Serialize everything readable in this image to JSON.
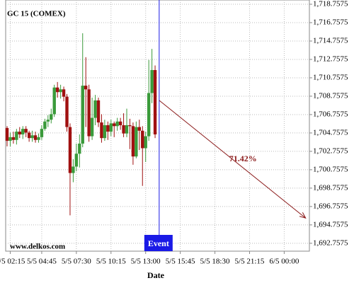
{
  "chart_data": {
    "type": "candlestick",
    "title": "GC 15 (COMEX)",
    "watermark": "www.delkos.com",
    "x_label": "Date",
    "x": [
      0,
      1,
      2,
      3,
      4,
      5,
      6,
      7,
      8,
      9,
      10,
      11,
      12,
      13,
      14,
      15,
      16,
      17,
      18,
      19,
      20,
      21,
      22,
      23,
      24,
      25,
      26,
      27,
      28,
      29,
      30,
      31,
      32,
      33,
      34,
      35,
      36,
      37,
      38,
      39,
      40,
      41,
      42,
      43,
      44,
      45,
      46,
      47
    ],
    "open": [
      1705.3,
      1703.9,
      1704.3,
      1704.0,
      1704.9,
      1704.6,
      1705.2,
      1704.8,
      1704.2,
      1704.5,
      1704.0,
      1704.3,
      1705.2,
      1706.0,
      1706.2,
      1706.8,
      1709.7,
      1709.2,
      1709.5,
      1708.7,
      1705.4,
      1700.4,
      1701.1,
      1702.5,
      1703.6,
      1709.9,
      1709.5,
      1704.4,
      1706.4,
      1708.3,
      1705.9,
      1704.2,
      1705.6,
      1704.9,
      1705.8,
      1705.5,
      1706.0,
      1705.6,
      1704.7,
      1705.6,
      1705.5,
      1702.2,
      1705.4,
      1705.0,
      1703.1,
      1704.4,
      1709.1,
      1711.6
    ],
    "high": [
      1705.5,
      1704.8,
      1704.9,
      1705.2,
      1705.4,
      1705.5,
      1705.5,
      1705.0,
      1705.0,
      1704.9,
      1704.7,
      1705.6,
      1706.3,
      1706.7,
      1707.4,
      1710.0,
      1710.3,
      1710.0,
      1709.8,
      1709.0,
      1705.8,
      1701.9,
      1703.6,
      1704.6,
      1715.6,
      1713.0,
      1710.0,
      1708.6,
      1708.9,
      1708.6,
      1706.8,
      1706.2,
      1706.0,
      1706.2,
      1706.0,
      1706.4,
      1706.4,
      1706.9,
      1707.4,
      1706.3,
      1705.9,
      1706.0,
      1706.2,
      1705.5,
      1704.9,
      1712.7,
      1713.9,
      1712.1
    ],
    "low": [
      1703.3,
      1703.3,
      1703.6,
      1703.5,
      1704.2,
      1704.1,
      1704.3,
      1703.8,
      1703.8,
      1703.7,
      1703.7,
      1704.0,
      1705.0,
      1705.4,
      1705.8,
      1706.5,
      1708.6,
      1708.5,
      1708.2,
      1704.9,
      1695.8,
      1699.4,
      1700.6,
      1701.0,
      1703.2,
      1705.4,
      1703.8,
      1704.0,
      1705.6,
      1705.4,
      1703.7,
      1703.9,
      1704.0,
      1704.4,
      1704.3,
      1705.0,
      1705.1,
      1704.3,
      1704.3,
      1703.0,
      1701.3,
      1702.0,
      1702.9,
      1699.0,
      1701.6,
      1703.9,
      1708.0,
      1704.2
    ],
    "close": [
      1703.9,
      1704.3,
      1704.0,
      1704.9,
      1704.6,
      1705.2,
      1704.8,
      1704.2,
      1704.5,
      1704.0,
      1704.3,
      1705.2,
      1706.0,
      1706.2,
      1706.8,
      1709.7,
      1709.2,
      1709.5,
      1708.7,
      1705.4,
      1700.4,
      1701.1,
      1702.5,
      1703.6,
      1709.9,
      1709.5,
      1704.4,
      1706.4,
      1708.3,
      1705.9,
      1704.2,
      1705.6,
      1704.9,
      1705.8,
      1705.5,
      1706.0,
      1705.6,
      1704.7,
      1705.6,
      1705.5,
      1702.2,
      1705.4,
      1705.0,
      1703.1,
      1704.4,
      1709.1,
      1711.6,
      1704.6
    ],
    "up_color": "#3a9a3a",
    "down_color": "#a01010",
    "event": {
      "label": "Event",
      "x": 48.3,
      "color": "#1a1ae6"
    },
    "projection": {
      "label": "71.42%",
      "x": [
        48.3,
        94.8
      ],
      "y": [
        1708.3,
        1695.5
      ],
      "color": "#8b1a1a"
    },
    "xlim": [
      -0.45,
      96
    ],
    "xticks": [
      {
        "value": 1,
        "label": "5/5 02:15"
      },
      {
        "value": 11,
        "label": "5/5 04:45"
      },
      {
        "value": 22,
        "label": "5/5 07:30"
      },
      {
        "value": 33,
        "label": "5/5 10:15"
      },
      {
        "value": 44,
        "label": "5/5 13:00"
      },
      {
        "value": 55,
        "label": "5/5 15:45"
      },
      {
        "value": 66,
        "label": "5/5 18:30"
      },
      {
        "value": 77,
        "label": "5/5 21:15"
      },
      {
        "value": 88,
        "label": "6/5 00:00"
      }
    ],
    "ylim": [
      1691.9,
      1719.22
    ],
    "yticks": [
      {
        "value": 1692.7575,
        "label": "1,692.7575"
      },
      {
        "value": 1694.7575,
        "label": "1,694.7575"
      },
      {
        "value": 1696.7575,
        "label": "1,696.7575"
      },
      {
        "value": 1698.7575,
        "label": "1,698.7575"
      },
      {
        "value": 1700.7575,
        "label": "1,700.7575"
      },
      {
        "value": 1702.7575,
        "label": "1,702.7575"
      },
      {
        "value": 1704.7575,
        "label": "1,704.7575"
      },
      {
        "value": 1706.7575,
        "label": "1,706.7575"
      },
      {
        "value": 1708.7575,
        "label": "1,708.7575"
      },
      {
        "value": 1710.7575,
        "label": "1,710.7575"
      },
      {
        "value": 1712.7575,
        "label": "1,712.7575"
      },
      {
        "value": 1714.7575,
        "label": "1,714.7575"
      },
      {
        "value": 1716.7575,
        "label": "1,716.7575"
      },
      {
        "value": 1718.7575,
        "label": "1,718.7575"
      }
    ],
    "grid": true
  }
}
